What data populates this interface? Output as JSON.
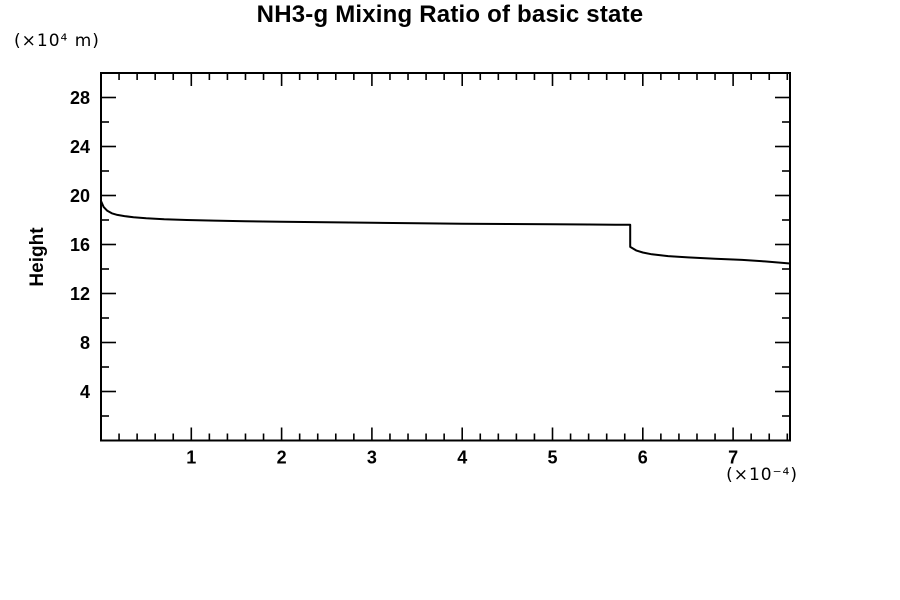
{
  "page": {
    "background": "#ffffff"
  },
  "chart_data": {
    "type": "line",
    "title": "NH3-g Mixing Ratio of basic state",
    "ylabel": "Height",
    "xlabel": "",
    "y_axis_unit": "(×10⁴  m)",
    "x_axis_unit": "(×10⁻⁴)",
    "xlim": [
      0,
      7.63
    ],
    "ylim": [
      0,
      30
    ],
    "grid": false,
    "legend": "none",
    "background": "#ffffff",
    "frame_color": "#000000",
    "line_color": "#000000",
    "xticks": {
      "major_values": [
        1,
        2,
        3,
        4,
        5,
        6,
        7
      ],
      "major_labels": [
        "1",
        "2",
        "3",
        "4",
        "5",
        "6",
        "7"
      ],
      "minor_step": 0.2
    },
    "yticks": {
      "major_values": [
        4,
        8,
        12,
        16,
        20,
        24,
        28
      ],
      "major_labels": [
        "4",
        "8",
        "12",
        "16",
        "20",
        "24",
        "28"
      ],
      "minor_step": 2
    },
    "series": [
      {
        "name": "NH3-g",
        "x": [
          0,
          0.03,
          0.07,
          0.12,
          0.18,
          0.26,
          0.36,
          0.5,
          0.7,
          0.95,
          1.25,
          1.6,
          2.0,
          2.5,
          3.0,
          3.5,
          4.0,
          4.5,
          5.0,
          5.4,
          5.7,
          5.86,
          5.86,
          5.93,
          6.0,
          6.1,
          6.28,
          6.5,
          6.8,
          7.1,
          7.35,
          7.63
        ],
        "y": [
          19.55,
          19.05,
          18.75,
          18.55,
          18.42,
          18.32,
          18.22,
          18.14,
          18.06,
          18.0,
          17.95,
          17.9,
          17.86,
          17.81,
          17.77,
          17.73,
          17.7,
          17.67,
          17.65,
          17.63,
          17.62,
          17.62,
          15.8,
          15.5,
          15.35,
          15.2,
          15.05,
          14.95,
          14.84,
          14.74,
          14.62,
          14.45
        ]
      }
    ]
  }
}
